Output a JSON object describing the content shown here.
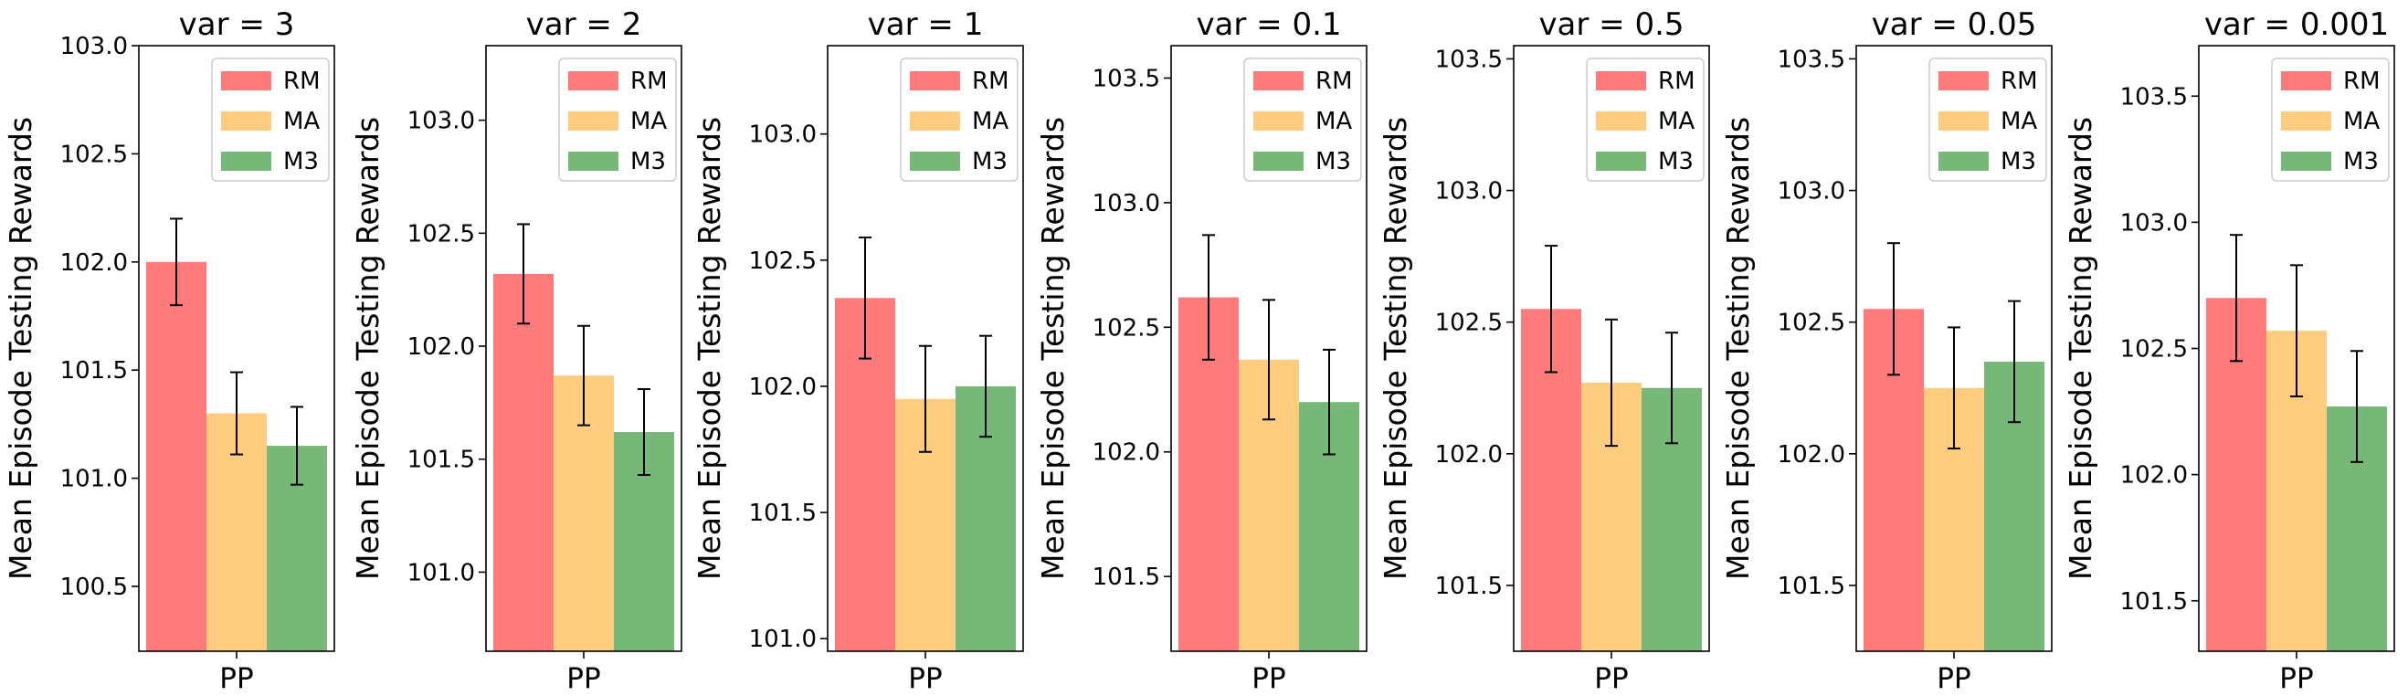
{
  "chart_data": [
    {
      "type": "bar",
      "title": "var = 3",
      "categories": [
        "PP"
      ],
      "xlabel": "PP",
      "ylabel": "Mean Episode Testing Rewards",
      "ylim": [
        100.2,
        103.0
      ],
      "yticks": [
        100.5,
        101.0,
        101.5,
        102.0,
        102.5,
        103.0
      ],
      "yticklabels": [
        "100.5",
        "101.0",
        "101.5",
        "102.0",
        "102.5",
        "103.0"
      ],
      "series": [
        {
          "name": "RM",
          "values": [
            102.0
          ],
          "error": [
            0.2
          ]
        },
        {
          "name": "MA",
          "values": [
            101.3
          ],
          "error": [
            0.19
          ]
        },
        {
          "name": "M3",
          "values": [
            101.15
          ],
          "error": [
            0.18
          ]
        }
      ]
    },
    {
      "type": "bar",
      "title": "var = 2",
      "categories": [
        "PP"
      ],
      "xlabel": "PP",
      "ylabel": "Mean Episode Testing Rewards",
      "ylim": [
        100.65,
        103.33
      ],
      "yticks": [
        101.0,
        101.5,
        102.0,
        102.5,
        103.0
      ],
      "yticklabels": [
        "101.0",
        "101.5",
        "102.0",
        "102.5",
        "103.0"
      ],
      "series": [
        {
          "name": "RM",
          "values": [
            102.32
          ],
          "error": [
            0.22
          ]
        },
        {
          "name": "MA",
          "values": [
            101.87
          ],
          "error": [
            0.22
          ]
        },
        {
          "name": "M3",
          "values": [
            101.62
          ],
          "error": [
            0.19
          ]
        }
      ]
    },
    {
      "type": "bar",
      "title": "var = 1",
      "categories": [
        "PP"
      ],
      "xlabel": "PP",
      "ylabel": "Mean Episode Testing Rewards",
      "ylim": [
        100.95,
        103.35
      ],
      "yticks": [
        101.0,
        101.5,
        102.0,
        102.5,
        103.0
      ],
      "yticklabels": [
        "101.0",
        "101.5",
        "102.0",
        "102.5",
        "103.0"
      ],
      "series": [
        {
          "name": "RM",
          "values": [
            102.35
          ],
          "error": [
            0.24
          ]
        },
        {
          "name": "MA",
          "values": [
            101.95
          ],
          "error": [
            0.21
          ]
        },
        {
          "name": "M3",
          "values": [
            102.0
          ],
          "error": [
            0.2
          ]
        }
      ]
    },
    {
      "type": "bar",
      "title": "var = 0.1",
      "categories": [
        "PP"
      ],
      "xlabel": "PP",
      "ylabel": "Mean Episode Testing Rewards",
      "ylim": [
        101.2,
        103.63
      ],
      "yticks": [
        101.5,
        102.0,
        102.5,
        103.0,
        103.5
      ],
      "yticklabels": [
        "101.5",
        "102.0",
        "102.5",
        "103.0",
        "103.5"
      ],
      "series": [
        {
          "name": "RM",
          "values": [
            102.62
          ],
          "error": [
            0.25
          ]
        },
        {
          "name": "MA",
          "values": [
            102.37
          ],
          "error": [
            0.24
          ]
        },
        {
          "name": "M3",
          "values": [
            102.2
          ],
          "error": [
            0.21
          ]
        }
      ]
    },
    {
      "type": "bar",
      "title": "var = 0.5",
      "categories": [
        "PP"
      ],
      "xlabel": "PP",
      "ylabel": "Mean Episode Testing Rewards",
      "ylim": [
        101.25,
        103.55
      ],
      "yticks": [
        101.5,
        102.0,
        102.5,
        103.0,
        103.5
      ],
      "yticklabels": [
        "101.5",
        "102.0",
        "102.5",
        "103.0",
        "103.5"
      ],
      "series": [
        {
          "name": "RM",
          "values": [
            102.55
          ],
          "error": [
            0.24
          ]
        },
        {
          "name": "MA",
          "values": [
            102.27
          ],
          "error": [
            0.24
          ]
        },
        {
          "name": "M3",
          "values": [
            102.25
          ],
          "error": [
            0.21
          ]
        }
      ]
    },
    {
      "type": "bar",
      "title": "var = 0.05",
      "categories": [
        "PP"
      ],
      "xlabel": "PP",
      "ylabel": "Mean Episode Testing Rewards",
      "ylim": [
        101.25,
        103.55
      ],
      "yticks": [
        101.5,
        102.0,
        102.5,
        103.0,
        103.5
      ],
      "yticklabels": [
        "101.5",
        "102.0",
        "102.5",
        "103.0",
        "103.5"
      ],
      "series": [
        {
          "name": "RM",
          "values": [
            102.55
          ],
          "error": [
            0.25
          ]
        },
        {
          "name": "MA",
          "values": [
            102.25
          ],
          "error": [
            0.23
          ]
        },
        {
          "name": "M3",
          "values": [
            102.35
          ],
          "error": [
            0.23
          ]
        }
      ]
    },
    {
      "type": "bar",
      "title": "var = 0.001",
      "categories": [
        "PP"
      ],
      "xlabel": "PP",
      "ylabel": "Mean Episode Testing Rewards",
      "ylim": [
        101.3,
        103.7
      ],
      "yticks": [
        101.5,
        102.0,
        102.5,
        103.0,
        103.5
      ],
      "yticklabels": [
        "101.5",
        "102.0",
        "102.5",
        "103.0",
        "103.5"
      ],
      "series": [
        {
          "name": "RM",
          "values": [
            102.7
          ],
          "error": [
            0.25
          ]
        },
        {
          "name": "MA",
          "values": [
            102.57
          ],
          "error": [
            0.26
          ]
        },
        {
          "name": "M3",
          "values": [
            102.27
          ],
          "error": [
            0.22
          ]
        }
      ]
    }
  ],
  "legend": {
    "placement": "top-right",
    "entries": [
      "RM",
      "MA",
      "M3"
    ]
  },
  "colors": {
    "RM": "#FF7B7B",
    "MA": "#FDCC7E",
    "M3": "#77B878",
    "axis": "#000000",
    "errorbar": "#000000"
  }
}
